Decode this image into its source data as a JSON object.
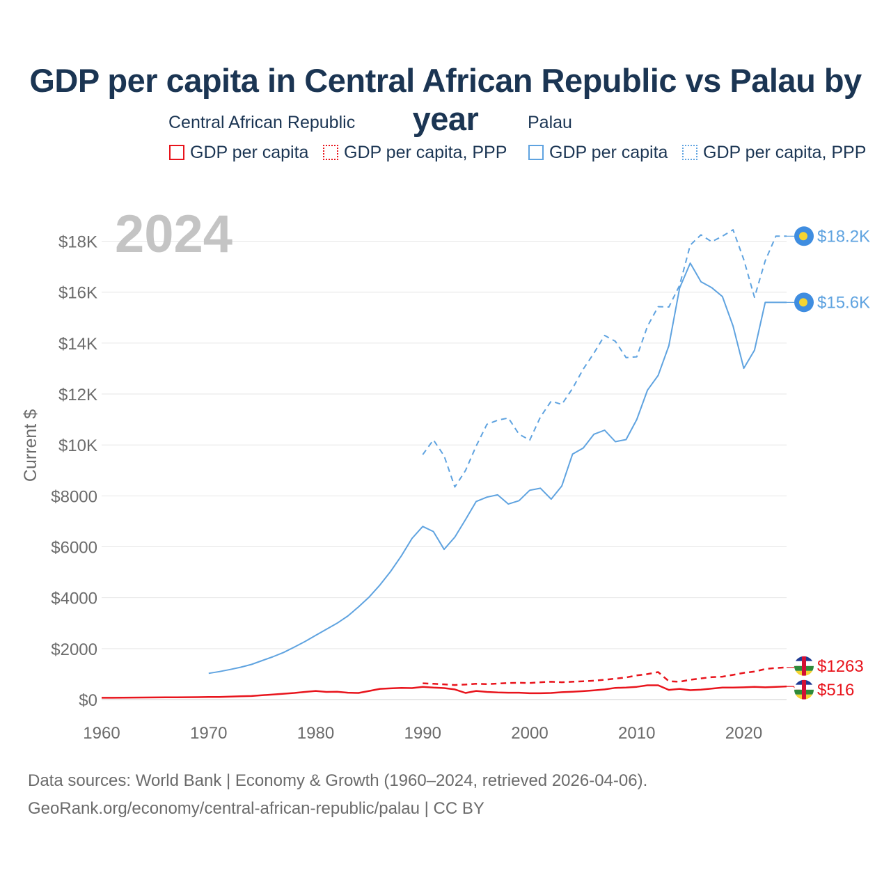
{
  "title": "GDP per capita in Central African Republic vs Palau by year",
  "legend": {
    "groups": [
      {
        "name": "Central African Republic",
        "items": [
          "GDP per capita",
          "GDP per capita, PPP"
        ]
      },
      {
        "name": "Palau",
        "items": [
          "GDP per capita",
          "GDP per capita, PPP"
        ]
      }
    ]
  },
  "year_watermark": "2024",
  "footer": {
    "line1": "Data sources: World Bank | Economy & Growth (1960–2024, retrieved 2026-04-06).",
    "line2": "GeoRank.org/economy/central-african-republic/palau | CC BY"
  },
  "colors": {
    "car": "#e8141c",
    "palau": "#5fa3e0",
    "grid": "#e6e6e6",
    "axis_text": "#6b6b6b"
  },
  "chart_data": {
    "type": "line",
    "title": "GDP per capita in Central African Republic vs Palau by year",
    "xlabel": "",
    "ylabel": "Current $",
    "xlim": [
      1960,
      2024
    ],
    "ylim": [
      0,
      19000
    ],
    "x_ticks": [
      1960,
      1970,
      1980,
      1990,
      2000,
      2010,
      2020
    ],
    "y_ticks": [
      0,
      2000,
      4000,
      6000,
      8000,
      10000,
      12000,
      14000,
      16000,
      18000
    ],
    "y_tick_labels": [
      "$0",
      "$2000",
      "$4000",
      "$6000",
      "$8000",
      "$10K",
      "$12K",
      "$14K",
      "$16K",
      "$18K"
    ],
    "grid": true,
    "series": [
      {
        "name": "Central African Republic — GDP per capita",
        "country": "car",
        "style": "solid",
        "end_label": "$516",
        "x": [
          1960,
          1961,
          1962,
          1963,
          1964,
          1965,
          1966,
          1967,
          1968,
          1969,
          1970,
          1971,
          1972,
          1973,
          1974,
          1975,
          1976,
          1977,
          1978,
          1979,
          1980,
          1981,
          1982,
          1983,
          1984,
          1985,
          1986,
          1987,
          1988,
          1989,
          1990,
          1991,
          1992,
          1993,
          1994,
          1995,
          1996,
          1997,
          1998,
          1999,
          2000,
          2001,
          2002,
          2003,
          2004,
          2005,
          2006,
          2007,
          2008,
          2009,
          2010,
          2011,
          2012,
          2013,
          2014,
          2015,
          2016,
          2017,
          2018,
          2019,
          2020,
          2021,
          2022,
          2023,
          2024
        ],
        "values": [
          70,
          72,
          75,
          78,
          82,
          85,
          87,
          90,
          92,
          95,
          100,
          105,
          115,
          130,
          140,
          170,
          200,
          230,
          260,
          300,
          340,
          300,
          310,
          270,
          260,
          340,
          420,
          440,
          460,
          450,
          500,
          470,
          450,
          400,
          260,
          340,
          300,
          280,
          270,
          270,
          250,
          250,
          260,
          290,
          310,
          330,
          360,
          400,
          460,
          470,
          500,
          560,
          560,
          380,
          420,
          370,
          390,
          430,
          470,
          470,
          480,
          500,
          480,
          500,
          516
        ]
      },
      {
        "name": "Central African Republic — GDP per capita, PPP",
        "country": "car",
        "style": "dashed",
        "end_label": "$1263",
        "x": [
          1990,
          1991,
          1992,
          1993,
          1994,
          1995,
          1996,
          1997,
          1998,
          1999,
          2000,
          2001,
          2002,
          2003,
          2004,
          2005,
          2006,
          2007,
          2008,
          2009,
          2010,
          2011,
          2012,
          2013,
          2014,
          2015,
          2016,
          2017,
          2018,
          2019,
          2020,
          2021,
          2022,
          2023,
          2024
        ],
        "values": [
          640,
          620,
          600,
          570,
          590,
          620,
          610,
          630,
          650,
          660,
          650,
          680,
          700,
          680,
          700,
          720,
          740,
          780,
          820,
          870,
          950,
          1000,
          1080,
          720,
          700,
          780,
          830,
          880,
          900,
          970,
          1050,
          1100,
          1200,
          1240,
          1263
        ]
      },
      {
        "name": "Palau — GDP per capita",
        "country": "palau",
        "style": "solid",
        "end_label": "$15.6K",
        "x": [
          1970,
          1971,
          1972,
          1973,
          1974,
          1975,
          1976,
          1977,
          1978,
          1979,
          1980,
          1981,
          1982,
          1983,
          1984,
          1985,
          1986,
          1987,
          1988,
          1989,
          1990,
          1991,
          1992,
          1993,
          1994,
          1995,
          1996,
          1997,
          1998,
          1999,
          2000,
          2001,
          2002,
          2003,
          2004,
          2005,
          2006,
          2007,
          2008,
          2009,
          2010,
          2011,
          2012,
          2013,
          2014,
          2015,
          2016,
          2017,
          2018,
          2019,
          2020,
          2021,
          2022,
          2023,
          2024
        ],
        "values": [
          1030,
          1100,
          1180,
          1270,
          1380,
          1530,
          1680,
          1850,
          2060,
          2280,
          2520,
          2760,
          3000,
          3280,
          3640,
          4030,
          4500,
          5030,
          5640,
          6330,
          6800,
          6600,
          5900,
          6380,
          7070,
          7780,
          7950,
          8040,
          7680,
          7810,
          8220,
          8300,
          7870,
          8390,
          9640,
          9880,
          10420,
          10580,
          10130,
          10210,
          11000,
          12150,
          12730,
          13900,
          16160,
          17140,
          16410,
          16180,
          15830,
          14670,
          13010,
          13720,
          15600,
          15600,
          15600
        ]
      },
      {
        "name": "Palau — GDP per capita, PPP",
        "country": "palau",
        "style": "dashed",
        "end_label": "$18.2K",
        "x": [
          1990,
          1991,
          1992,
          1993,
          1994,
          1995,
          1996,
          1997,
          1998,
          1999,
          2000,
          2001,
          2002,
          2003,
          2004,
          2005,
          2006,
          2007,
          2008,
          2009,
          2010,
          2011,
          2012,
          2013,
          2014,
          2015,
          2016,
          2017,
          2018,
          2019,
          2020,
          2021,
          2022,
          2023,
          2024
        ],
        "values": [
          9620,
          10200,
          9570,
          8350,
          9000,
          9960,
          10810,
          10970,
          11060,
          10420,
          10190,
          11100,
          11720,
          11590,
          12220,
          12980,
          13610,
          14300,
          14070,
          13430,
          13460,
          14660,
          15430,
          15420,
          16270,
          17850,
          18250,
          17980,
          18200,
          18450,
          17280,
          15800,
          17230,
          18200,
          18200
        ]
      }
    ]
  }
}
